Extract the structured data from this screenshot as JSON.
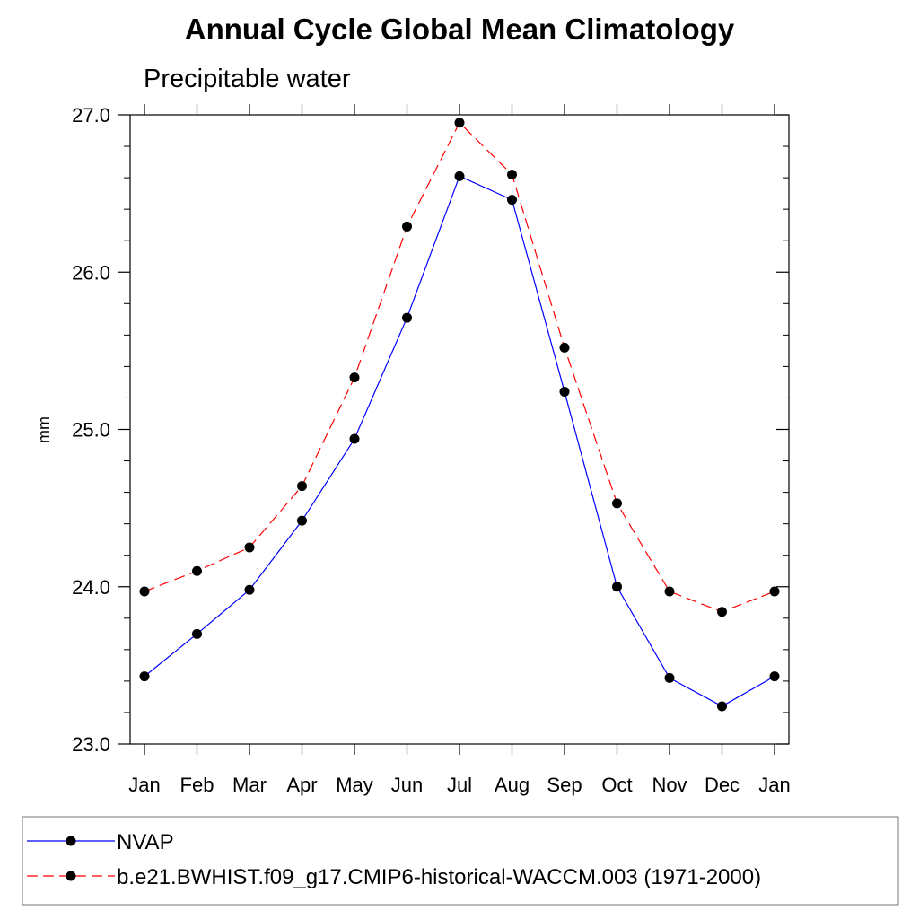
{
  "chart_data": {
    "type": "line",
    "title": "Annual Cycle Global Mean Climatology",
    "subtitle": "Precipitable water",
    "xlabel": "",
    "ylabel": "mm",
    "categories": [
      "Jan",
      "Feb",
      "Mar",
      "Apr",
      "May",
      "Jun",
      "Jul",
      "Aug",
      "Sep",
      "Oct",
      "Nov",
      "Dec",
      "Jan"
    ],
    "ylim": [
      23.0,
      27.0
    ],
    "yticks": [
      "23.0",
      "24.0",
      "25.0",
      "26.0",
      "27.0"
    ],
    "grid": false,
    "legend_position": "bottom",
    "series": [
      {
        "name": "NVAP",
        "color": "#0000ff",
        "line_style": "solid",
        "values": [
          23.43,
          23.7,
          23.98,
          24.42,
          24.94,
          25.71,
          26.61,
          26.46,
          25.24,
          24.0,
          23.42,
          23.24,
          23.43
        ]
      },
      {
        "name": "b.e21.BWHIST.f09_g17.CMIP6-historical-WACCM.003 (1971-2000)",
        "color": "#ff0000",
        "line_style": "dashed",
        "values": [
          23.97,
          24.1,
          24.25,
          24.64,
          25.33,
          26.29,
          26.95,
          26.62,
          25.52,
          24.53,
          23.97,
          23.84,
          23.97
        ]
      }
    ]
  }
}
